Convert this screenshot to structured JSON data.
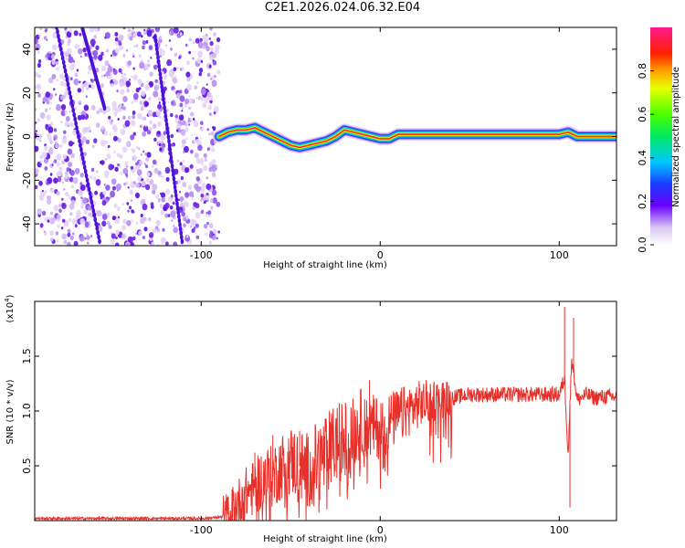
{
  "title": "C2E1.2026.024.06.32.E04",
  "chart_data": [
    {
      "type": "heatmap",
      "name": "spectrogram",
      "xlabel": "Height of straight line (km)",
      "ylabel": "Frequency (Hz)",
      "xlim": [
        -193,
        132
      ],
      "ylim": [
        -50,
        50
      ],
      "xticks": [
        -100,
        0,
        100
      ],
      "xtick_labels": [
        "-100",
        "0",
        "100"
      ],
      "yticks": [
        -40,
        -20,
        0,
        20,
        40
      ],
      "ytick_labels": [
        "-40",
        "-20",
        "0",
        "20",
        "40"
      ],
      "noise_region": {
        "x_from": -193,
        "x_to": -90
      },
      "ridge": {
        "x": [
          -90,
          -85,
          -80,
          -75,
          -70,
          -65,
          -60,
          -55,
          -50,
          -45,
          -40,
          -35,
          -30,
          -25,
          -20,
          -15,
          -10,
          -5,
          0,
          5,
          10,
          20,
          40,
          60,
          80,
          100,
          105,
          110,
          120,
          132
        ],
        "y": [
          0,
          2,
          3,
          3,
          4,
          2,
          0,
          -2,
          -4,
          -5,
          -4,
          -3,
          -2,
          0,
          3,
          2,
          1,
          0,
          -1,
          -1,
          1,
          1,
          1,
          1,
          1,
          1,
          2,
          0,
          0,
          0
        ]
      },
      "colorbar": {
        "label": "Normalized spectral amplitude",
        "range": [
          0,
          1
        ],
        "ticks": [
          0.0,
          0.2,
          0.4,
          0.6,
          0.8
        ],
        "tick_labels": [
          "0.0",
          "0.2",
          "0.4",
          "0.6",
          "0.8"
        ]
      }
    },
    {
      "type": "line",
      "name": "snr",
      "xlabel": "Height of straight line (km)",
      "ylabel": "SNR (10 * v/v)",
      "y_multiplier": "(x10",
      "y_multiplier_exp": "4",
      "xlim": [
        -193,
        132
      ],
      "ylim": [
        0,
        2.0
      ],
      "xticks": [
        -100,
        0,
        100
      ],
      "xtick_labels": [
        "-100",
        "0",
        "100"
      ],
      "yticks": [
        0.5,
        1.0,
        1.5
      ],
      "ytick_labels": [
        "0.5",
        "1.0",
        "1.5"
      ],
      "color": "#e8302a",
      "series": {
        "x": [
          -193,
          -180,
          -160,
          -140,
          -120,
          -100,
          -90,
          -85,
          -80,
          -75,
          -70,
          -65,
          -60,
          -55,
          -50,
          -45,
          -40,
          -35,
          -30,
          -25,
          -20,
          -15,
          -10,
          -5,
          0,
          10,
          20,
          30,
          40,
          50,
          60,
          70,
          80,
          90,
          95,
          100,
          103,
          105,
          107,
          110,
          115,
          120,
          125,
          132
        ],
        "y": [
          0.02,
          0.02,
          0.02,
          0.02,
          0.02,
          0.02,
          0.03,
          0.05,
          0.15,
          0.25,
          0.3,
          0.4,
          0.4,
          0.5,
          0.55,
          0.5,
          0.45,
          0.55,
          0.6,
          0.7,
          0.75,
          0.8,
          0.9,
          0.85,
          0.85,
          0.95,
          1.05,
          1.1,
          1.12,
          1.15,
          1.15,
          1.15,
          1.15,
          1.15,
          1.15,
          1.15,
          1.3,
          0.6,
          1.5,
          1.1,
          1.15,
          1.12,
          1.13,
          1.13
        ]
      },
      "peaks": [
        {
          "x": 103,
          "y": 1.95
        },
        {
          "x": 106,
          "y": 0.12
        },
        {
          "x": 108,
          "y": 1.85
        },
        {
          "x": -6,
          "y": 1.28
        },
        {
          "x": -45,
          "y": 0.82
        },
        {
          "x": -60,
          "y": 0.78
        },
        {
          "x": -70,
          "y": 0.62
        }
      ]
    }
  ]
}
